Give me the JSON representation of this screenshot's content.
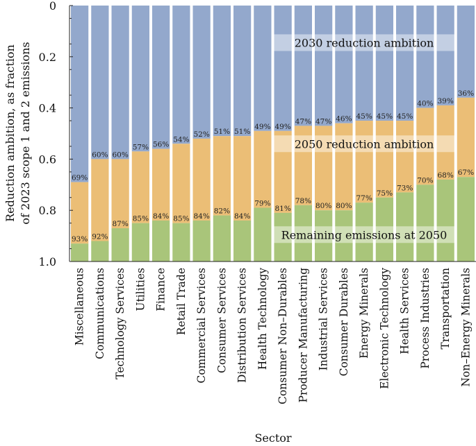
{
  "chart_data": {
    "type": "bar",
    "stacked": true,
    "title": "",
    "xlabel": "Sector",
    "ylabel": "Reduction ambition, as fraction of 2023 scope 1 and 2 emissions",
    "ylabel_lines": [
      "Reduction ambition, as fraction",
      "of 2023 scope 1 and 2 emissions"
    ],
    "ylim": [
      0,
      1.0
    ],
    "y_inverted": true,
    "yticks": [
      "0",
      "0.2",
      "0.4",
      "0.6",
      "0.8",
      "1.0"
    ],
    "ytick_values": [
      0,
      0.2,
      0.4,
      0.6,
      0.8,
      1.0
    ],
    "categories": [
      "Miscellaneous",
      "Communications",
      "Technology Services",
      "Utilities",
      "Finance",
      "Retail Trade",
      "Commercial Services",
      "Consumer Services",
      "Distribution Services",
      "Health Technology",
      "Consumer Non–Durables",
      "Producer Manufacturing",
      "Industrial Services",
      "Consumer Durables",
      "Energy Minerals",
      "Electronic Technology",
      "Health Services",
      "Process Industries",
      "Transportation",
      "Non–Energy Minerals"
    ],
    "series": [
      {
        "name": "2030 reduction ambition",
        "values": [
          0.69,
          0.6,
          0.6,
          0.57,
          0.56,
          0.54,
          0.52,
          0.51,
          0.51,
          0.49,
          0.49,
          0.47,
          0.47,
          0.46,
          0.45,
          0.45,
          0.45,
          0.4,
          0.39,
          0.36
        ],
        "labels": [
          "69%",
          "60%",
          "60%",
          "57%",
          "56%",
          "54%",
          "52%",
          "51%",
          "51%",
          "49%",
          "49%",
          "47%",
          "47%",
          "46%",
          "45%",
          "45%",
          "45%",
          "40%",
          "39%",
          "36%"
        ],
        "color": "#93a8cc"
      },
      {
        "name": "2050 reduction ambition",
        "values": [
          0.93,
          0.92,
          0.87,
          0.85,
          0.84,
          0.85,
          0.84,
          0.82,
          0.84,
          0.79,
          0.81,
          0.78,
          0.8,
          0.8,
          0.77,
          0.75,
          0.73,
          0.7,
          0.68,
          0.67
        ],
        "labels": [
          "93%",
          "92%",
          "87%",
          "85%",
          "84%",
          "85%",
          "84%",
          "82%",
          "84%",
          "79%",
          "81%",
          "78%",
          "80%",
          "80%",
          "77%",
          "75%",
          "73%",
          "70%",
          "68%",
          "67%"
        ],
        "color": "#ebbe76"
      },
      {
        "name": "Remaining emissions at 2050",
        "color": "#a9c57a"
      }
    ],
    "legend": [
      "2030 reduction ambition",
      "2050 reduction ambition",
      "Remaining emissions at 2050"
    ],
    "legend_placement": "inside-right"
  }
}
